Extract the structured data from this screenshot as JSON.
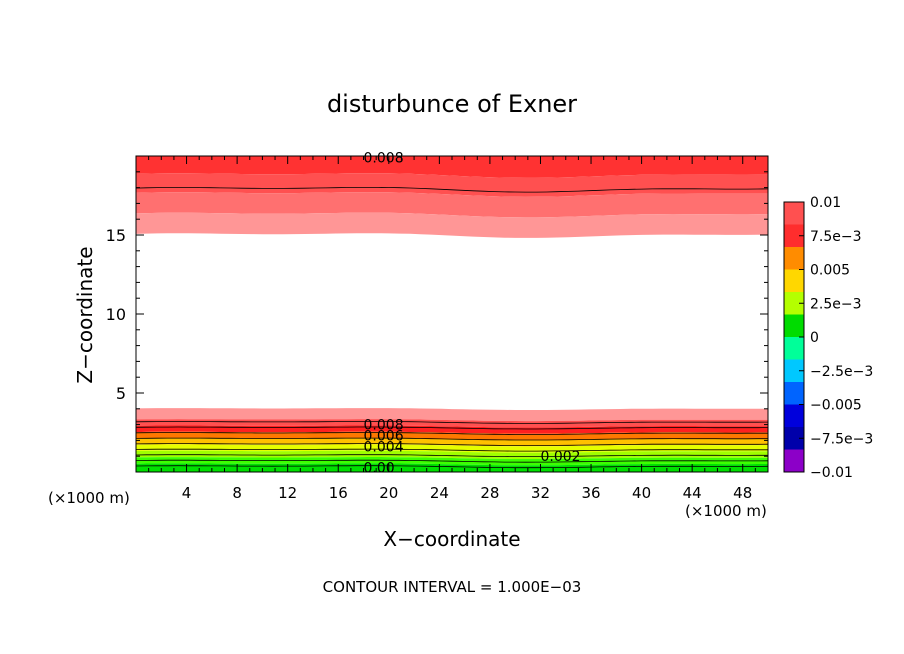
{
  "chart_data": {
    "type": "contour",
    "title": "disturbunce of Exner",
    "xlabel": "X−coordinate",
    "ylabel": "Z−coordinate",
    "x_unit_left": "(×1000 m)",
    "x_unit_right": "(×1000 m)",
    "xlim": [
      0,
      50
    ],
    "ylim": [
      0,
      20
    ],
    "x_ticks": [
      "4",
      "8",
      "12",
      "16",
      "20",
      "24",
      "28",
      "32",
      "36",
      "40",
      "44",
      "48"
    ],
    "y_ticks": [
      "5",
      "10",
      "15"
    ],
    "footer": "CONTOUR INTERVAL = 1.000E−03",
    "colorbar_labels": [
      "0.01",
      "7.5e−3",
      "0.005",
      "2.5e−3",
      "0",
      "−2.5e−3",
      "−0.005",
      "−7.5e−3",
      "−0.01"
    ],
    "colorbar_colors": [
      "#ff5050",
      "#ff2d2d",
      "#ff8c00",
      "#ffd700",
      "#b4ff00",
      "#00dc00",
      "#00ff99",
      "#00c8ff",
      "#0064ff",
      "#0000dc",
      "#0000aa",
      "#8c00c8"
    ],
    "contour_labels": [
      {
        "text": "0.008",
        "x": 18,
        "z": 19.9
      },
      {
        "text": "0.008",
        "x": 18,
        "z": 3.0
      },
      {
        "text": "0.006",
        "x": 18,
        "z": 2.3
      },
      {
        "text": "0.004",
        "x": 18,
        "z": 1.6
      },
      {
        "text": "0.002",
        "x": 32,
        "z": 1.0
      },
      {
        "text": "0.00",
        "x": 18,
        "z": 0.3
      }
    ],
    "upper_bands": [
      {
        "color": "#ff3232",
        "z0": 18.8,
        "z1": 20.0
      },
      {
        "color": "#ff5050",
        "z0": 17.6,
        "z1": 18.8
      },
      {
        "color": "#ff7070",
        "z0": 16.3,
        "z1": 17.6
      },
      {
        "color": "#ff9696",
        "z0": 15.0,
        "z1": 16.3
      }
    ],
    "lower_bands": [
      {
        "color": "#ff9696",
        "z0": 3.3,
        "z1": 4.0
      },
      {
        "color": "#ff5050",
        "z0": 2.9,
        "z1": 3.3
      },
      {
        "color": "#ff2020",
        "z0": 2.5,
        "z1": 2.9
      },
      {
        "color": "#ff7800",
        "z0": 2.1,
        "z1": 2.5
      },
      {
        "color": "#ffc000",
        "z0": 1.7,
        "z1": 2.1
      },
      {
        "color": "#e6ff00",
        "z0": 1.3,
        "z1": 1.7
      },
      {
        "color": "#a0ff00",
        "z0": 0.9,
        "z1": 1.3
      },
      {
        "color": "#3cff00",
        "z0": 0.5,
        "z1": 0.9
      },
      {
        "color": "#00e000",
        "z0": 0.0,
        "z1": 0.5
      }
    ]
  }
}
